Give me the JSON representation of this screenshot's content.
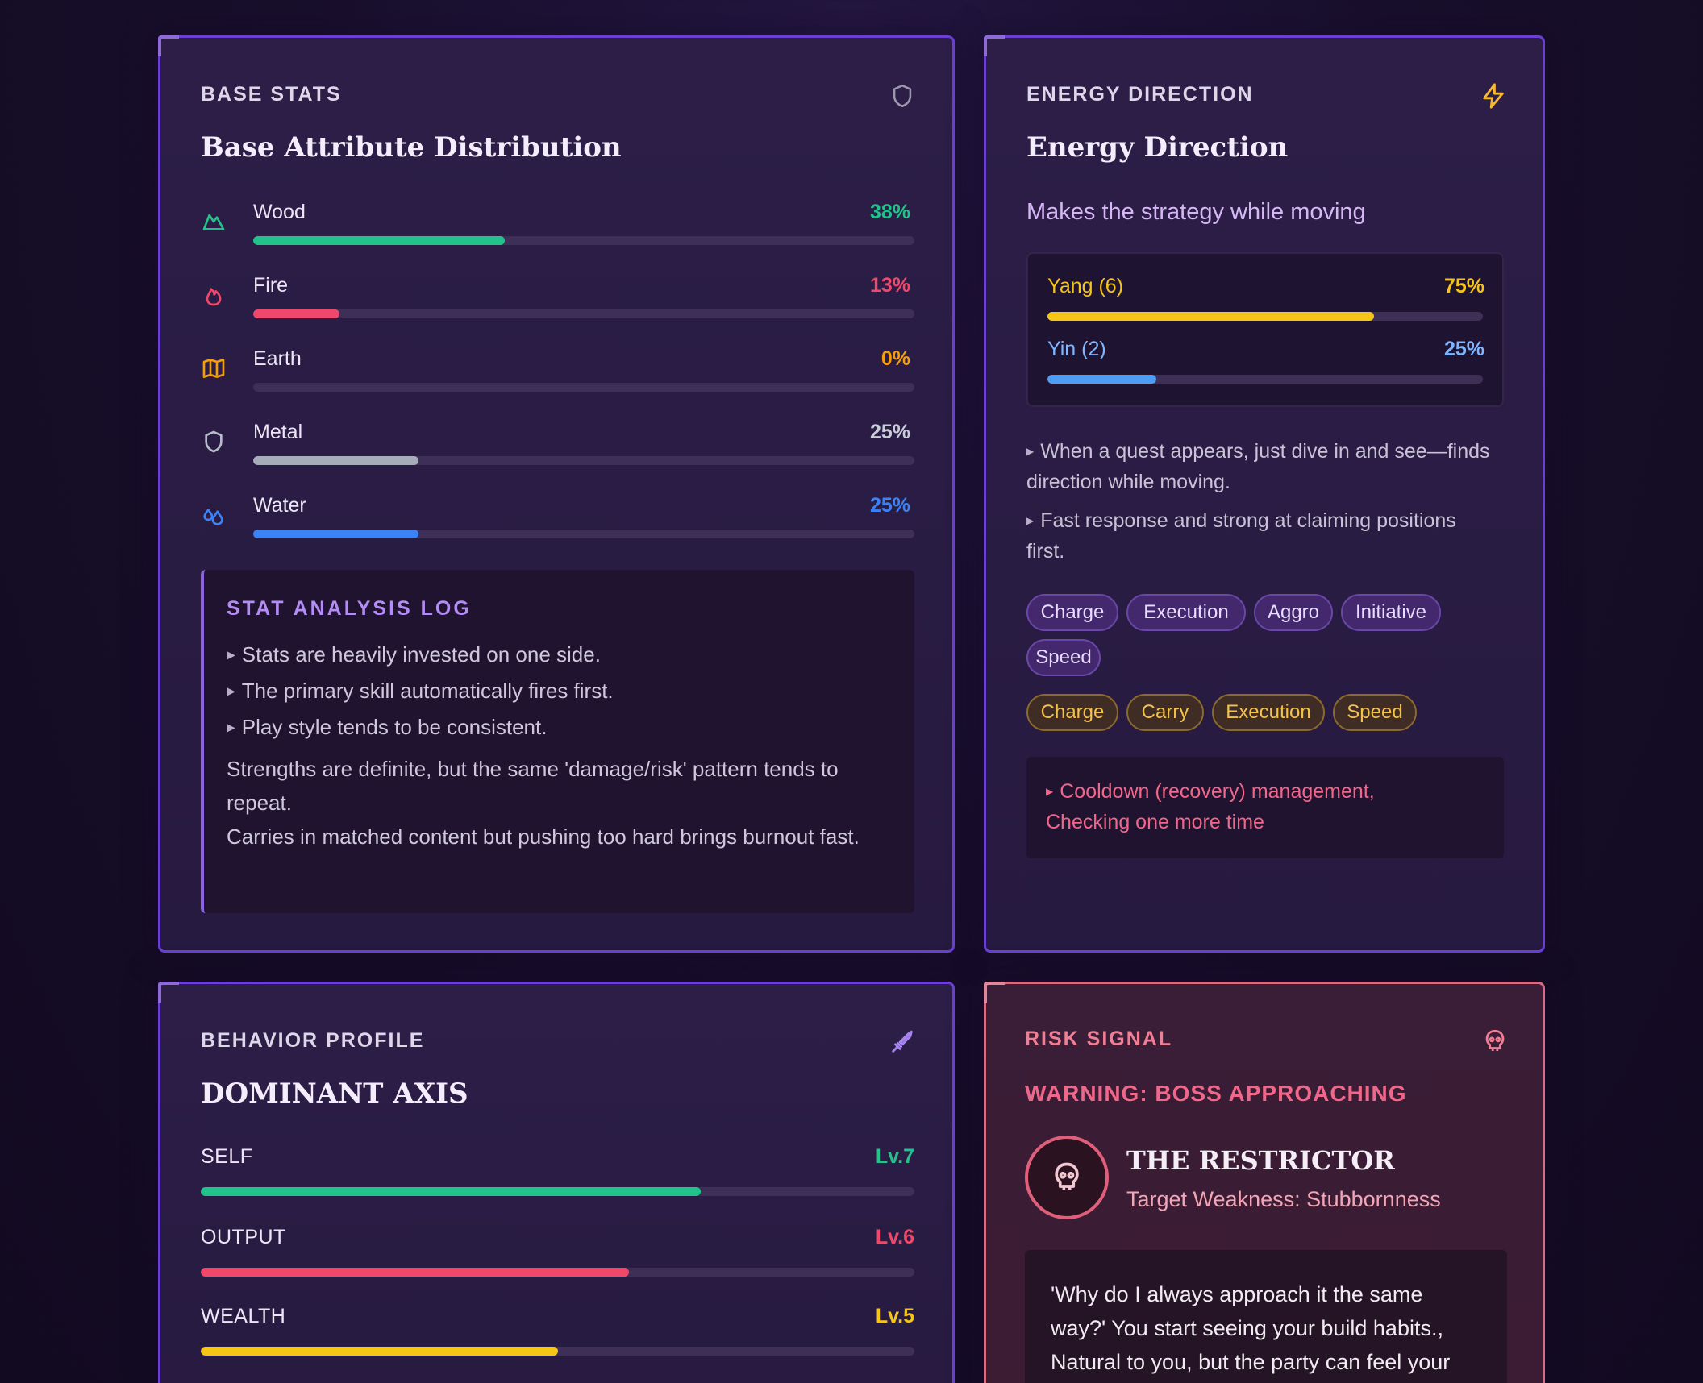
{
  "base_stats": {
    "eyebrow": "BASE STATS",
    "icon": "shield-icon",
    "title": "Base Attribute Distribution",
    "rows": [
      {
        "label": "Wood",
        "pct_label": "38%",
        "value": 38,
        "color": "#22c38a",
        "icon": "mountain-icon"
      },
      {
        "label": "Fire",
        "pct_label": "13%",
        "value": 13,
        "color": "#f0486a",
        "icon": "flame-icon"
      },
      {
        "label": "Earth",
        "pct_label": "0%",
        "value": 0,
        "color": "#f59e0b",
        "icon": "map-icon"
      },
      {
        "label": "Metal",
        "pct_label": "25%",
        "value": 25,
        "color": "#a6acba",
        "icon": "shield-icon"
      },
      {
        "label": "Water",
        "pct_label": "25%",
        "value": 25,
        "color": "#3b82f6",
        "icon": "droplets-icon"
      }
    ],
    "log": {
      "title": "STAT ANALYSIS LOG",
      "bullets": [
        "Stats are heavily invested on one side.",
        "The primary skill automatically fires first.",
        "Play style tends to be consistent."
      ],
      "paragraph_1": "Strengths are definite, but the same 'damage/risk' pattern tends to repeat.",
      "paragraph_2": "Carries in matched content but pushing too hard brings burnout fast."
    }
  },
  "energy": {
    "eyebrow": "ENERGY DIRECTION",
    "icon": "lightning-icon",
    "title": "Energy Direction",
    "subtitle": "Makes the strategy while moving",
    "yang": {
      "label": "Yang (6)",
      "pct_label": "75%",
      "value": 75,
      "color": "#f5c518"
    },
    "yin": {
      "label": "Yin (2)",
      "pct_label": "25%",
      "value": 25,
      "color": "#4f9cf5"
    },
    "notes": [
      "When a quest appears, just dive in and see—finds direction while moving.",
      "Fast response and strong at claiming positions first."
    ],
    "chips_purple": [
      "Charge",
      "Execution",
      "Aggro",
      "Initiative",
      "Speed"
    ],
    "chips_gold": [
      "Charge",
      "Carry",
      "Execution",
      "Speed"
    ],
    "warning": "Cooldown (recovery) management, Checking one more time"
  },
  "behavior": {
    "eyebrow": "BEHAVIOR PROFILE",
    "icon": "sword-icon",
    "title": "DOMINANT AXIS",
    "axes": [
      {
        "label": "SELF",
        "level": "Lv.7",
        "value": 7,
        "color": "#22c38a"
      },
      {
        "label": "OUTPUT",
        "level": "Lv.6",
        "value": 6,
        "color": "#f0486a"
      },
      {
        "label": "WEALTH",
        "level": "Lv.5",
        "value": 5,
        "color": "#f5c518"
      }
    ]
  },
  "risk": {
    "eyebrow": "RISK SIGNAL",
    "icon": "skull-icon",
    "warning": "WARNING: BOSS APPROACHING",
    "boss_name": "THE RESTRICTOR",
    "boss_weakness": "Target Weakness: Stubbornness",
    "quote_lines": [
      "'Why do I always approach it the same",
      "way?' You start seeing your build habits.,",
      "Natural to you, but the party can feel your"
    ]
  }
}
